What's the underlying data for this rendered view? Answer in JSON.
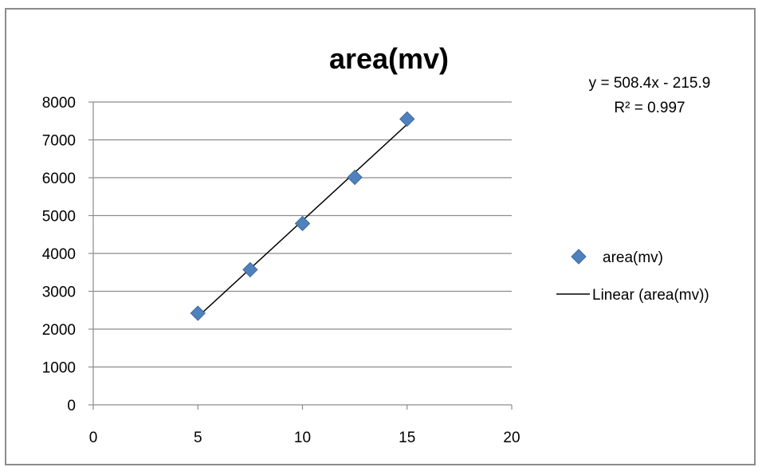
{
  "chart_data": {
    "type": "scatter",
    "title": "area(mv)",
    "xlabel": "",
    "ylabel": "",
    "xlim": [
      0,
      20
    ],
    "ylim": [
      0,
      8000
    ],
    "x_ticks": [
      0,
      5,
      10,
      15,
      20
    ],
    "y_ticks": [
      0,
      1000,
      2000,
      3000,
      4000,
      5000,
      6000,
      7000,
      8000
    ],
    "grid": "horizontal",
    "legend_position": "right",
    "series": [
      {
        "name": "area(mv)",
        "marker": "diamond",
        "color": "#4f81bd",
        "x": [
          5,
          7.5,
          10,
          12.5,
          15
        ],
        "y": [
          2420,
          3570,
          4790,
          6010,
          7550
        ]
      }
    ],
    "trendline": {
      "name": "Linear (area(mv))",
      "type": "linear",
      "slope": 508.4,
      "intercept": -215.9,
      "x_range": [
        5,
        15
      ],
      "color": "#000000",
      "equation_label": "y = 508.4x - 215.9",
      "r2_label": "R² = 0.997"
    }
  }
}
